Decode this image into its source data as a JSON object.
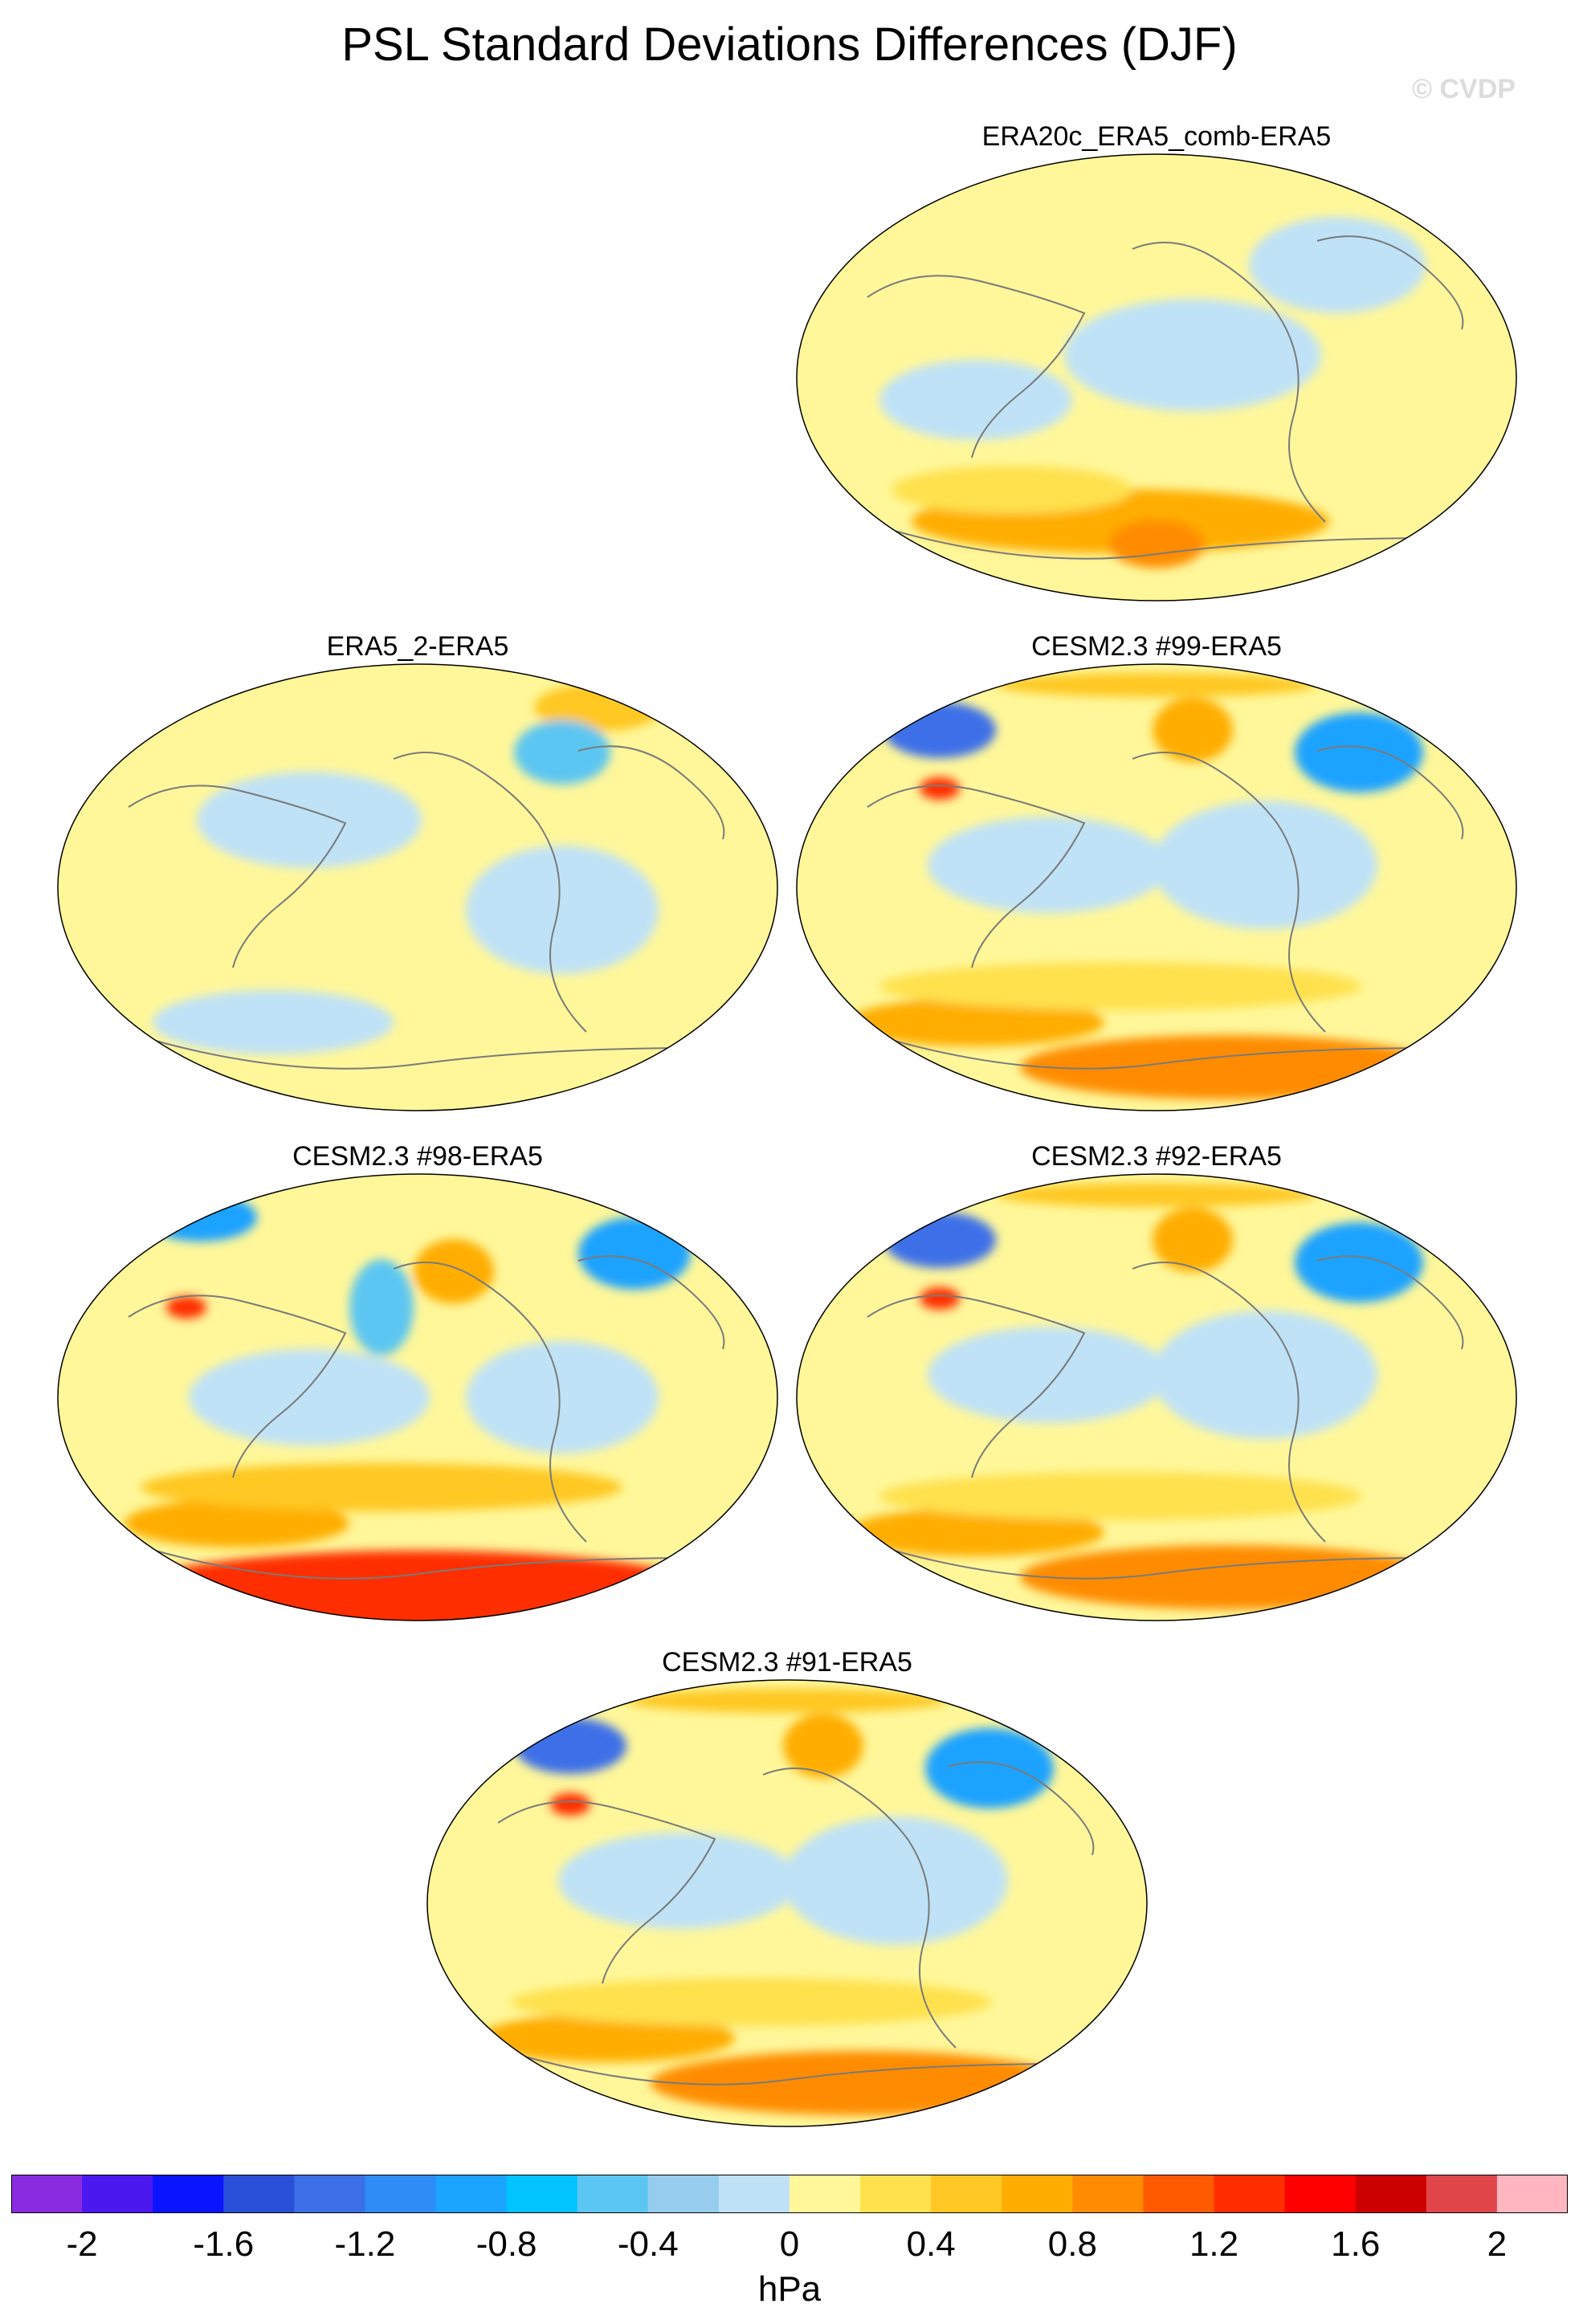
{
  "title": "PSL Standard Deviations Differences (DJF)",
  "credit": "© CVDP",
  "panels": [
    {
      "label": "ERA20c_ERA5_comb-ERA5",
      "col": 1,
      "row": 0,
      "style": "weak"
    },
    {
      "label": "ERA5_2-ERA5",
      "col": 0,
      "row": 1,
      "style": "neutral"
    },
    {
      "label": "CESM2.3 #99-ERA5",
      "col": 1,
      "row": 1,
      "style": "model"
    },
    {
      "label": "CESM2.3 #98-ERA5",
      "col": 0,
      "row": 2,
      "style": "model_strong"
    },
    {
      "label": "CESM2.3 #92-ERA5",
      "col": 1,
      "row": 2,
      "style": "model"
    },
    {
      "label": "CESM2.3 #91-ERA5",
      "col": 0.5,
      "row": 3,
      "style": "model"
    }
  ],
  "colorbar": {
    "unit": "hPa",
    "ticks": [
      "-2",
      "-1.6",
      "-1.2",
      "-0.8",
      "-0.4",
      "0",
      "0.4",
      "0.8",
      "1.2",
      "1.6",
      "2"
    ],
    "colors": [
      "#8a2be2",
      "#4b19f0",
      "#0a14ff",
      "#2a4fd8",
      "#3c6fe8",
      "#2d8cf5",
      "#1aa3ff",
      "#00c3ff",
      "#5cc6f2",
      "#96cdef",
      "#bfe2f7",
      "#fff79a",
      "#ffe14d",
      "#ffc824",
      "#ffad00",
      "#ff8c00",
      "#ff5a00",
      "#ff2d00",
      "#ff0000",
      "#cc0000",
      "#e0454a",
      "#ffb6c1"
    ]
  }
}
